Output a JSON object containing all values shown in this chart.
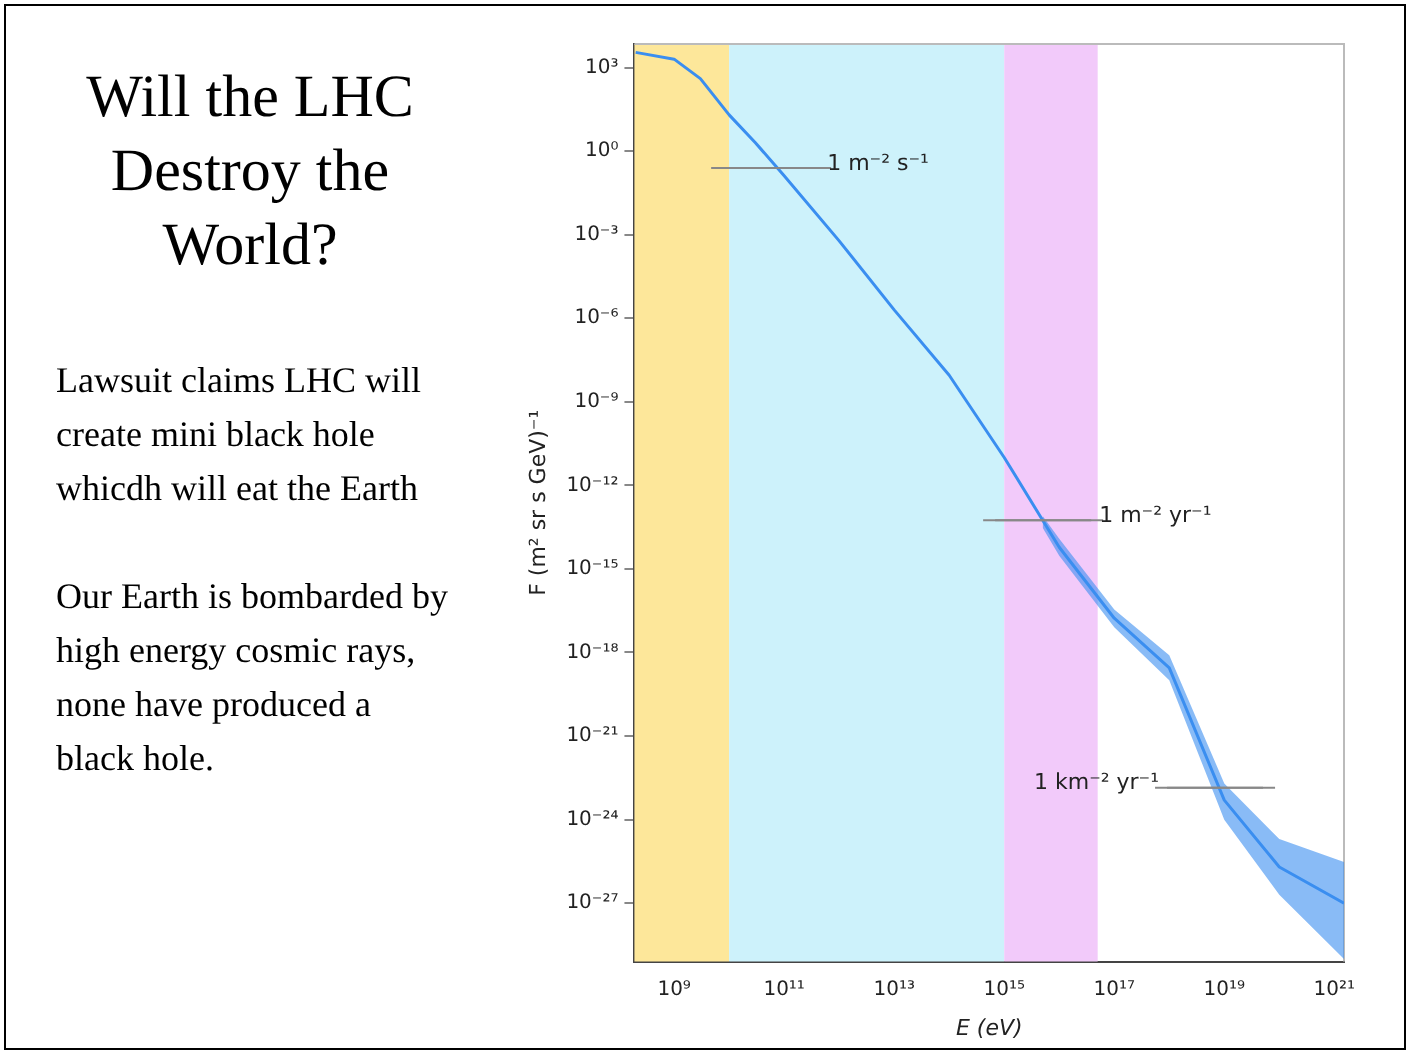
{
  "chart_data": {
    "type": "line",
    "title": "Will the LHC Destroy the World?",
    "xlabel": "E (eV)",
    "ylabel": "F (m² sr s GeV)⁻¹",
    "log": "xy",
    "grid": false,
    "legend": false,
    "marker": "none",
    "line_style": "solid",
    "xlim": [
      190000000.0,
      1.5e+21
    ],
    "ylim": [
      8e-30,
      7000.0
    ],
    "xticks": [
      {
        "value": 1000000000.0,
        "label": "10⁹"
      },
      {
        "value": 100000000000.0,
        "label": "10¹¹"
      },
      {
        "value": 10000000000000.0,
        "label": "10¹³"
      },
      {
        "value": 1000000000000000.0,
        "label": "10¹⁵"
      },
      {
        "value": 1e+17,
        "label": "10¹⁷"
      },
      {
        "value": 1e+19,
        "label": "10¹⁹"
      },
      {
        "value": 1e+21,
        "label": "10²¹"
      }
    ],
    "yticks": [
      {
        "value": 1000.0,
        "label": "10³"
      },
      {
        "value": 1,
        "label": "10⁰"
      },
      {
        "value": 0.001,
        "label": "10⁻³"
      },
      {
        "value": 1e-06,
        "label": "10⁻⁶"
      },
      {
        "value": 1e-09,
        "label": "10⁻⁹"
      },
      {
        "value": 1e-12,
        "label": "10⁻¹²"
      },
      {
        "value": 1e-15,
        "label": "10⁻¹⁵"
      },
      {
        "value": 1e-18,
        "label": "10⁻¹⁸"
      },
      {
        "value": 1e-21,
        "label": "10⁻²¹"
      },
      {
        "value": 1e-24,
        "label": "10⁻²⁴"
      },
      {
        "value": 1e-27,
        "label": "10⁻²⁷"
      }
    ],
    "x": [
      200000000.0,
      1000000000.0,
      3000000000.0,
      10000000000.0,
      30000000000.0,
      100000000000.0,
      1000000000000.0,
      10000000000000.0,
      100000000000000.0,
      1000000000000000.0,
      5000000000000000.0,
      1e+16,
      1e+17,
      1e+18,
      1e+19,
      1e+20,
      1.5e+21
    ],
    "series": [
      {
        "color": "#3a8ef0",
        "values": [
          3500.0,
          2000.0,
          400.0,
          20.0,
          2,
          0.13,
          0.0006,
          2e-06,
          9e-09,
          1e-11,
          5.6e-14,
          6e-15,
          1.7e-17,
          2.8e-19,
          5e-24,
          2e-26,
          1e-27
        ],
        "lower": [
          null,
          null,
          null,
          null,
          null,
          null,
          null,
          null,
          null,
          null,
          3e-14,
          3e-15,
          8e-18,
          1e-19,
          1e-24,
          2e-27,
          1e-29
        ],
        "upper": [
          null,
          null,
          null,
          null,
          null,
          null,
          null,
          null,
          null,
          null,
          8e-14,
          1.2e-14,
          3.5e-17,
          8e-19,
          2e-23,
          2e-25,
          3e-26
        ]
      }
    ],
    "bands": [
      {
        "axis": "x",
        "from": 190000000.0,
        "to": 10000000000.0,
        "color": "#fde79a"
      },
      {
        "axis": "x",
        "from": 10000000000.0,
        "to": 1000000000000000.0,
        "color": "#cdf2fb"
      },
      {
        "axis": "x",
        "from": 1000000000000000.0,
        "to": 5e+16,
        "color": "#f2cafa"
      }
    ],
    "annotations": [
      {
        "text": "1 m⁻² s⁻¹",
        "x": 58000000000.0,
        "y": 0.25
      },
      {
        "text": "1 m⁻² yr⁻¹",
        "x": 5100000000000000.0,
        "y": 5.6e-14
      },
      {
        "text": "1 km⁻² yr⁻¹",
        "x": 6.8e+18,
        "y": 1.4e-23
      },
      "Lawsuit claims LHC will create mini black hole whicdh will eat the Earth",
      "Our Earth is bombarded by high energy cosmic rays, none have produced a black hole."
    ]
  }
}
